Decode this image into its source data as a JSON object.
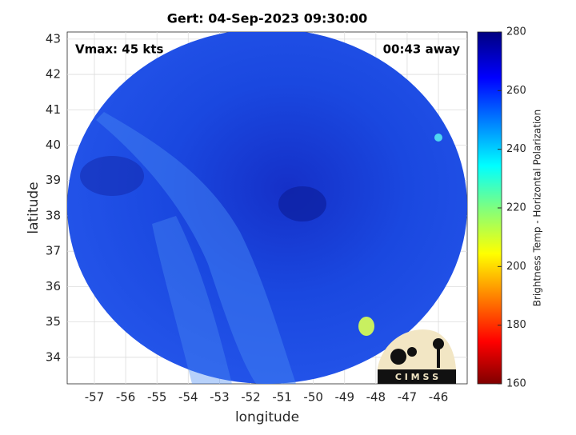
{
  "title": "Gert: 04-Sep-2023 09:30:00",
  "annotations": {
    "vmax": "Vmax: 45 kts",
    "away": "00:43 away"
  },
  "axes": {
    "xlabel": "longitude",
    "ylabel": "latitude",
    "xlim": [
      -57.87,
      -45.08
    ],
    "xticks": [
      -57,
      -56,
      -55,
      -54,
      -53,
      -52,
      -51,
      -50,
      -49,
      -48,
      -47,
      -46
    ],
    "ylim": [
      33.25,
      43.2
    ],
    "yticks": [
      34,
      35,
      36,
      37,
      38,
      39,
      40,
      41,
      42,
      43
    ]
  },
  "colorbar": {
    "label": "Brightness Temp - Horizontal Polarization",
    "lim": [
      160,
      280
    ],
    "ticks": [
      160,
      180,
      200,
      220,
      240,
      260,
      280
    ]
  },
  "logo": "C I M S S"
}
